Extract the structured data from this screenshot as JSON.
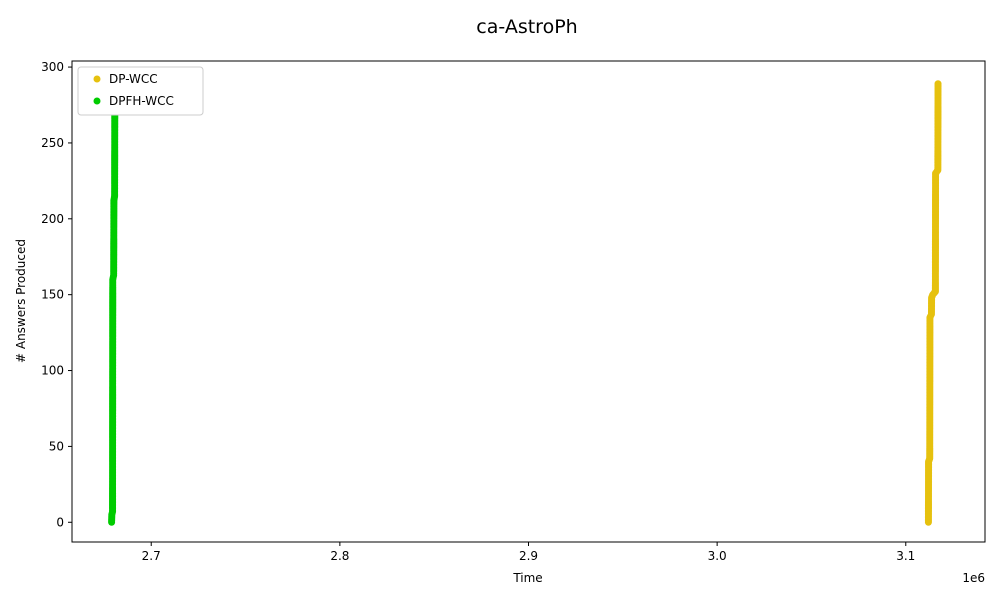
{
  "chart_data": {
    "type": "scatter",
    "title": "ca-AstroPh",
    "xlabel": "Time",
    "ylabel": "# Answers Produced",
    "x_offset_label": "1e6",
    "xlim": [
      2658000,
      3142000
    ],
    "ylim": [
      -13,
      304
    ],
    "x_ticks": [
      2700000,
      2800000,
      2900000,
      3000000,
      3100000
    ],
    "x_tick_labels": [
      "2.7",
      "2.8",
      "2.9",
      "3.0",
      "3.1"
    ],
    "y_ticks": [
      0,
      50,
      100,
      150,
      200,
      250,
      300
    ],
    "y_tick_labels": [
      "0",
      "50",
      "100",
      "150",
      "200",
      "250",
      "300"
    ],
    "legend_position": "upper-left",
    "grid": false,
    "series": [
      {
        "name": "DP-WCC",
        "color": "#e6c10e",
        "points": [
          [
            3112000,
            0
          ],
          [
            3112100,
            40
          ],
          [
            3112700,
            42
          ],
          [
            3112800,
            135
          ],
          [
            3113600,
            137
          ],
          [
            3113700,
            148
          ],
          [
            3114300,
            150
          ],
          [
            3115700,
            152
          ],
          [
            3115800,
            230
          ],
          [
            3117000,
            232
          ],
          [
            3117100,
            289
          ]
        ]
      },
      {
        "name": "DPFH-WCC",
        "color": "#00cc00",
        "points": [
          [
            2679000,
            0
          ],
          [
            2679100,
            5
          ],
          [
            2679500,
            7
          ],
          [
            2679600,
            160
          ],
          [
            2680100,
            163
          ],
          [
            2680200,
            212
          ],
          [
            2680600,
            215
          ],
          [
            2680700,
            290
          ]
        ]
      }
    ]
  }
}
